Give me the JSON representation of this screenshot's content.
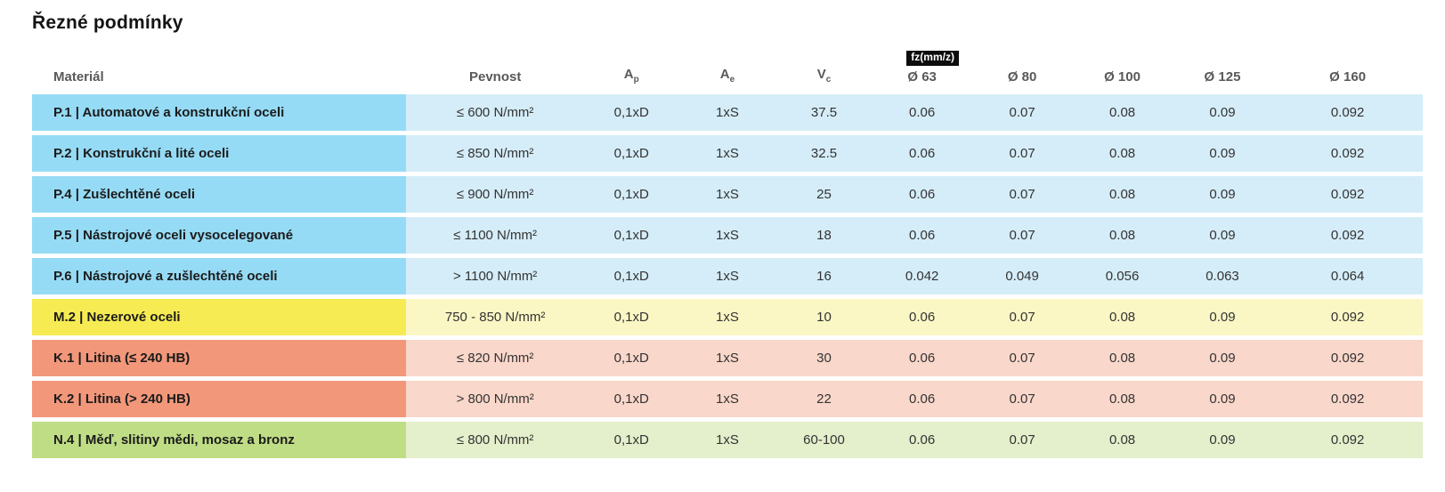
{
  "title": "Řezné podmínky",
  "table": {
    "headers": {
      "material": "Materiál",
      "pevnost": "Pevnost",
      "ap_base": "A",
      "ap_sub": "p",
      "ae_base": "A",
      "ae_sub": "e",
      "vc_base": "V",
      "vc_sub": "c",
      "fz_badge": "fz(mm/z)",
      "diameters": [
        "Ø 63",
        "Ø 80",
        "Ø 100",
        "Ø 125",
        "Ø 160"
      ]
    },
    "colors": {
      "blue": {
        "label": "#96DBF5",
        "cell": "#D5EDF8"
      },
      "yellow": {
        "label": "#F6EB52",
        "cell": "#FBF7C5"
      },
      "salmon": {
        "label": "#F2977A",
        "cell": "#F9D7CA"
      },
      "green": {
        "label": "#BFDD85",
        "cell": "#E4EFCB"
      }
    },
    "rows": [
      {
        "material": "P.1 | Automatové a konstrukční oceli",
        "pevnost": "≤ 600 N/mm²",
        "ap": "0,1xD",
        "ae": "1xS",
        "vc": "37.5",
        "fz": [
          "0.06",
          "0.07",
          "0.08",
          "0.09",
          "0.092"
        ],
        "color_group": "blue"
      },
      {
        "material": "P.2 | Konstrukční a lité oceli",
        "pevnost": "≤ 850 N/mm²",
        "ap": "0,1xD",
        "ae": "1xS",
        "vc": "32.5",
        "fz": [
          "0.06",
          "0.07",
          "0.08",
          "0.09",
          "0.092"
        ],
        "color_group": "blue"
      },
      {
        "material": "P.4 | Zušlechtěné oceli",
        "pevnost": "≤ 900 N/mm²",
        "ap": "0,1xD",
        "ae": "1xS",
        "vc": "25",
        "fz": [
          "0.06",
          "0.07",
          "0.08",
          "0.09",
          "0.092"
        ],
        "color_group": "blue"
      },
      {
        "material": "P.5 | Nástrojové oceli vysocelegované",
        "pevnost": "≤ 1100 N/mm²",
        "ap": "0,1xD",
        "ae": "1xS",
        "vc": "18",
        "fz": [
          "0.06",
          "0.07",
          "0.08",
          "0.09",
          "0.092"
        ],
        "color_group": "blue"
      },
      {
        "material": "P.6 | Nástrojové a zušlechtěné oceli",
        "pevnost": "> 1100 N/mm²",
        "ap": "0,1xD",
        "ae": "1xS",
        "vc": "16",
        "fz": [
          "0.042",
          "0.049",
          "0.056",
          "0.063",
          "0.064"
        ],
        "color_group": "blue"
      },
      {
        "material": "M.2 | Nezerové oceli",
        "pevnost": "750 - 850 N/mm²",
        "ap": "0,1xD",
        "ae": "1xS",
        "vc": "10",
        "fz": [
          "0.06",
          "0.07",
          "0.08",
          "0.09",
          "0.092"
        ],
        "color_group": "yellow"
      },
      {
        "material": "K.1 | Litina (≤ 240 HB)",
        "pevnost": "≤ 820 N/mm²",
        "ap": "0,1xD",
        "ae": "1xS",
        "vc": "30",
        "fz": [
          "0.06",
          "0.07",
          "0.08",
          "0.09",
          "0.092"
        ],
        "color_group": "salmon"
      },
      {
        "material": "K.2 | Litina (> 240 HB)",
        "pevnost": "> 800 N/mm²",
        "ap": "0,1xD",
        "ae": "1xS",
        "vc": "22",
        "fz": [
          "0.06",
          "0.07",
          "0.08",
          "0.09",
          "0.092"
        ],
        "color_group": "salmon"
      },
      {
        "material": "N.4 | Měď, slitiny mědi, mosaz a bronz",
        "pevnost": "≤ 800 N/mm²",
        "ap": "0,1xD",
        "ae": "1xS",
        "vc": "60-100",
        "fz": [
          "0.06",
          "0.07",
          "0.08",
          "0.09",
          "0.092"
        ],
        "color_group": "green"
      }
    ]
  }
}
